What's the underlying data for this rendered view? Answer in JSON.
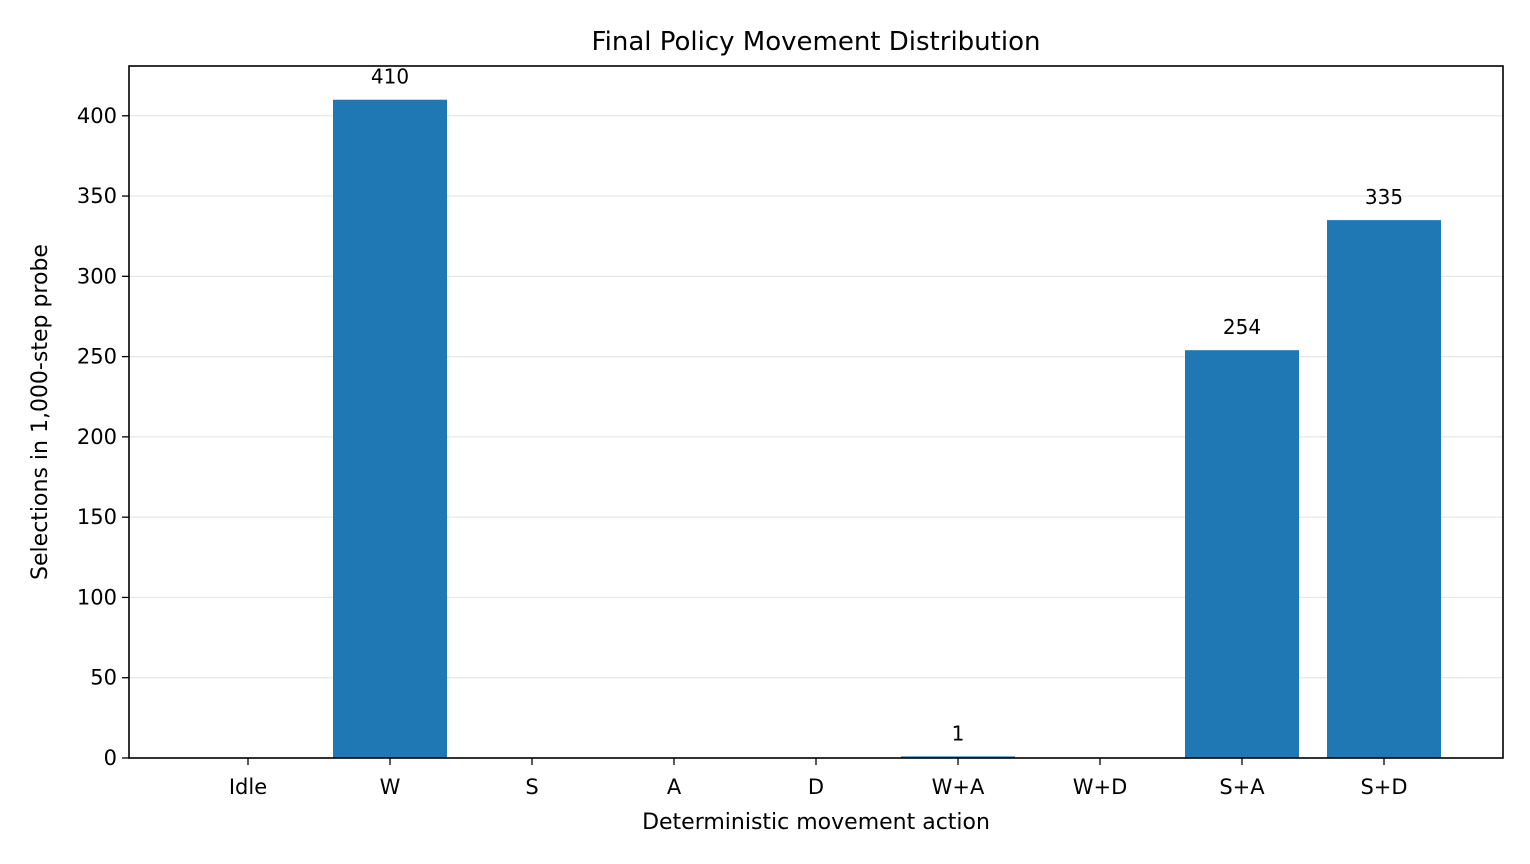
{
  "chart_data": {
    "type": "bar",
    "title": "Final Policy Movement Distribution",
    "xlabel": "Deterministic movement action",
    "ylabel": "Selections in 1,000-step probe",
    "categories": [
      "Idle",
      "W",
      "S",
      "A",
      "D",
      "W+A",
      "W+D",
      "S+A",
      "S+D"
    ],
    "values": [
      0,
      410,
      0,
      0,
      0,
      1,
      0,
      254,
      335
    ],
    "data_labels": [
      "",
      "410",
      "",
      "",
      "",
      "1",
      "",
      "254",
      "335"
    ],
    "ylim": [
      0,
      431
    ],
    "yticks": [
      0,
      50,
      100,
      150,
      200,
      250,
      300,
      350,
      400
    ],
    "grid": "y",
    "bar_color": "#1f77b4"
  }
}
